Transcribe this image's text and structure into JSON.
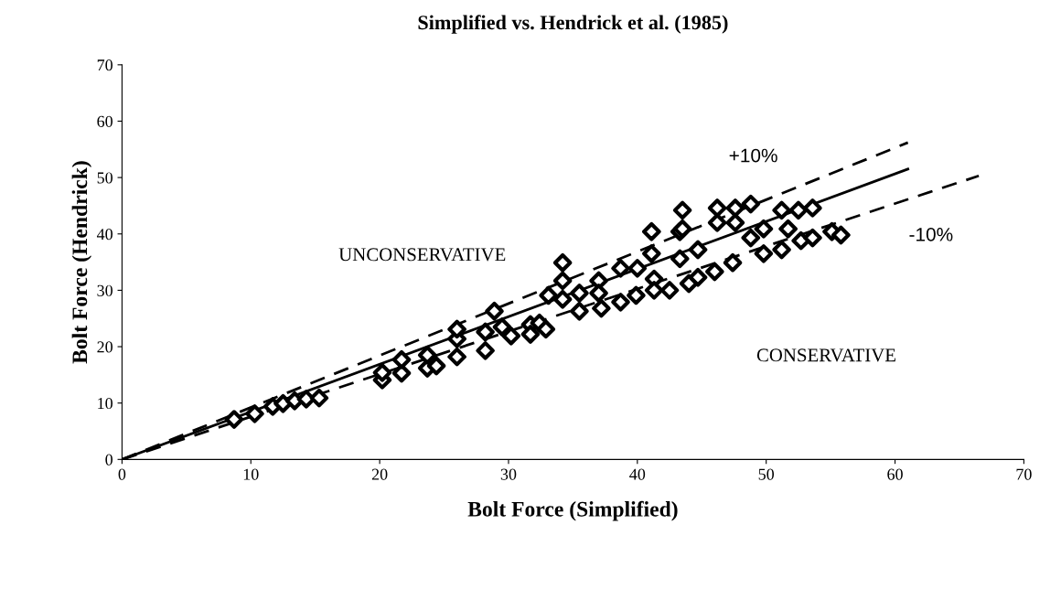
{
  "chart_data": {
    "type": "scatter",
    "title": "Simplified vs. Hendrick et al. (1985)",
    "xlabel": "Bolt Force (Simplified)",
    "ylabel": "Bolt Force (Hendrick)",
    "xlim": [
      0,
      70
    ],
    "ylim": [
      0,
      70
    ],
    "xticks": [
      0,
      10,
      20,
      30,
      40,
      50,
      60,
      70
    ],
    "yticks": [
      0,
      10,
      20,
      30,
      40,
      50,
      60,
      70
    ],
    "grid": false,
    "legend": false,
    "series": [
      {
        "marker": "diamond",
        "color": "#000000",
        "x": [
          8.7,
          10.3,
          11.7,
          12.5,
          13.4,
          14.3,
          15.3,
          20.2,
          20.2,
          21.7,
          21.7,
          23.7,
          24.4,
          23.7,
          26.0,
          26.0,
          26.0,
          28.2,
          28.2,
          28.9,
          29.5,
          30.2,
          31.7,
          31.7,
          32.4,
          33.1,
          32.9,
          34.2,
          34.2,
          34.2,
          35.5,
          35.5,
          37.0,
          37.0,
          37.2,
          38.7,
          38.7,
          39.9,
          40.0,
          41.1,
          41.1,
          41.3,
          41.3,
          42.5,
          43.3,
          43.3,
          44.0,
          44.7,
          44.7,
          43.5,
          43.5,
          46.2,
          46.2,
          46.0,
          47.6,
          47.6,
          47.4,
          48.8,
          48.8,
          49.8,
          49.8,
          51.2,
          51.2,
          52.5,
          52.7,
          53.6,
          53.6,
          55.1,
          55.8,
          51.7
        ],
        "values": [
          7.1,
          8.1,
          9.4,
          9.9,
          10.4,
          10.7,
          10.9,
          14.1,
          15.4,
          15.3,
          17.7,
          16.2,
          16.6,
          18.5,
          18.2,
          21.4,
          23.1,
          19.3,
          22.6,
          26.3,
          23.5,
          21.9,
          23.9,
          22.2,
          24.2,
          29.1,
          23.1,
          34.9,
          31.7,
          28.4,
          29.5,
          26.3,
          31.7,
          29.5,
          26.8,
          33.9,
          27.9,
          29.1,
          33.9,
          40.4,
          36.5,
          32.0,
          30.0,
          30.0,
          40.4,
          35.6,
          31.2,
          37.2,
          32.3,
          44.2,
          40.9,
          44.6,
          42.0,
          33.3,
          44.6,
          42.0,
          34.9,
          45.3,
          39.3,
          40.9,
          36.5,
          44.2,
          37.2,
          44.2,
          38.8,
          44.6,
          39.3,
          40.4,
          39.8,
          40.9
        ]
      },
      {
        "type": "line",
        "color": "#000000",
        "marker": "none",
        "line_style": "solid",
        "x": [
          0,
          61
        ],
        "values": [
          0,
          51.5
        ]
      },
      {
        "type": "line",
        "color": "#000000",
        "marker": "none",
        "line_style": "dashed",
        "x": [
          0,
          61
        ],
        "values": [
          0,
          56.2
        ]
      },
      {
        "type": "line",
        "color": "#000000",
        "marker": "none",
        "line_style": "dashed",
        "x": [
          0,
          66.5
        ],
        "values": [
          0,
          50.3
        ]
      }
    ],
    "annotations": [
      "UNCONSERVATIVE",
      "CONSERVATIVE",
      "+10%",
      "-10%"
    ]
  }
}
